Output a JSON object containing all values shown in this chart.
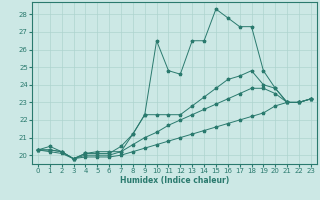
{
  "xlabel": "Humidex (Indice chaleur)",
  "bg_color": "#cce8e5",
  "line_color": "#2a7a6e",
  "grid_color": "#aed4cf",
  "xlim": [
    -0.5,
    23.5
  ],
  "ylim": [
    19.5,
    28.7
  ],
  "yticks": [
    20,
    21,
    22,
    23,
    24,
    25,
    26,
    27,
    28
  ],
  "xticks": [
    0,
    1,
    2,
    3,
    4,
    5,
    6,
    7,
    8,
    9,
    10,
    11,
    12,
    13,
    14,
    15,
    16,
    17,
    18,
    19,
    20,
    21,
    22,
    23
  ],
  "s1": [
    20.3,
    20.5,
    20.2,
    19.8,
    20.1,
    20.2,
    20.2,
    20.2,
    21.2,
    22.3,
    26.5,
    24.8,
    24.6,
    26.5,
    26.5,
    28.3,
    27.8,
    27.3,
    27.3,
    24.8,
    23.8,
    23.0,
    23.0,
    23.2
  ],
  "s2": [
    20.3,
    20.3,
    20.2,
    19.8,
    20.1,
    20.1,
    20.1,
    20.5,
    21.2,
    22.3,
    22.3,
    22.3,
    22.3,
    22.8,
    23.3,
    23.8,
    24.3,
    24.5,
    24.8,
    24.0,
    23.8,
    23.0,
    23.0,
    23.2
  ],
  "s3": [
    20.3,
    20.3,
    20.2,
    19.8,
    20.0,
    20.0,
    20.0,
    20.2,
    20.6,
    21.0,
    21.3,
    21.7,
    22.0,
    22.3,
    22.6,
    22.9,
    23.2,
    23.5,
    23.8,
    23.8,
    23.5,
    23.0,
    23.0,
    23.2
  ],
  "s4": [
    20.3,
    20.2,
    20.1,
    19.8,
    19.9,
    19.9,
    19.9,
    20.0,
    20.2,
    20.4,
    20.6,
    20.8,
    21.0,
    21.2,
    21.4,
    21.6,
    21.8,
    22.0,
    22.2,
    22.4,
    22.8,
    23.0,
    23.0,
    23.2
  ]
}
